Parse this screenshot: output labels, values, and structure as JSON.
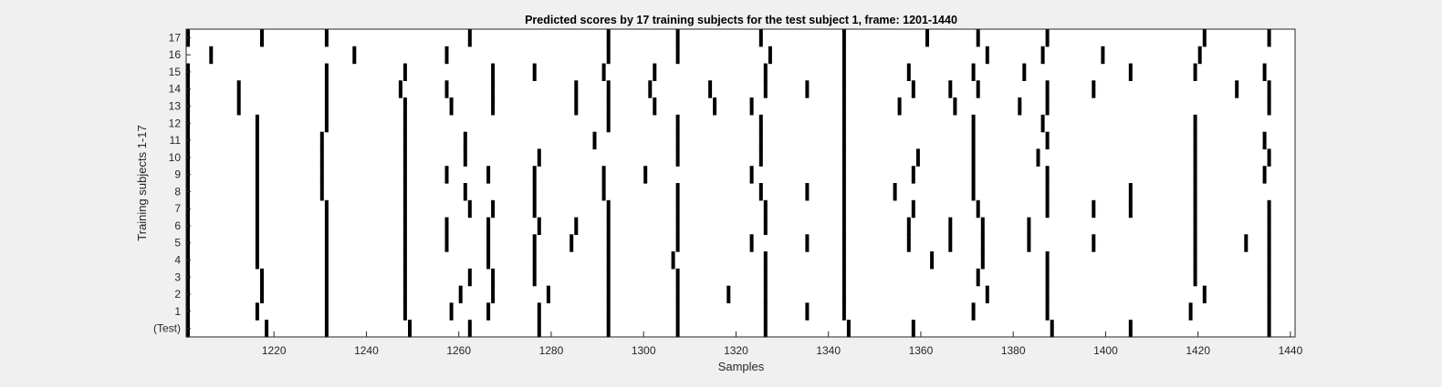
{
  "chart_data": {
    "type": "raster",
    "title": "Predicted scores by 17 training subjects for the test subject 1, frame: 1201-1440",
    "xlabel": "Samples",
    "ylabel": "Training subjects 1-17",
    "xlim": [
      1201,
      1441
    ],
    "x_ticks": [
      1220,
      1240,
      1260,
      1280,
      1300,
      1320,
      1340,
      1360,
      1380,
      1400,
      1420,
      1440
    ],
    "rows": [
      {
        "label": "17",
        "events": [
          1201,
          1217,
          1231,
          1262,
          1292,
          1307,
          1325,
          1343,
          1361,
          1372,
          1387,
          1421,
          1435
        ]
      },
      {
        "label": "16",
        "events": [
          1206,
          1237,
          1257,
          1292,
          1307,
          1327,
          1343,
          1374,
          1386,
          1399,
          1420
        ]
      },
      {
        "label": "15",
        "events": [
          1201,
          1231,
          1248,
          1267,
          1276,
          1291,
          1302,
          1326,
          1343,
          1357,
          1371,
          1382,
          1405,
          1419,
          1434
        ]
      },
      {
        "label": "14",
        "events": [
          1201,
          1212,
          1231,
          1247,
          1257,
          1267,
          1285,
          1292,
          1301,
          1314,
          1326,
          1335,
          1343,
          1358,
          1366,
          1372,
          1387,
          1397,
          1428,
          1435
        ]
      },
      {
        "label": "13",
        "events": [
          1201,
          1212,
          1231,
          1248,
          1258,
          1267,
          1285,
          1292,
          1302,
          1315,
          1323,
          1343,
          1355,
          1367,
          1381,
          1387,
          1435
        ]
      },
      {
        "label": "12",
        "events": [
          1201,
          1216,
          1231,
          1248,
          1292,
          1307,
          1325,
          1343,
          1371,
          1386,
          1419
        ]
      },
      {
        "label": "11",
        "events": [
          1200,
          1216,
          1230,
          1248,
          1261,
          1289,
          1307,
          1325,
          1343,
          1371,
          1387,
          1419,
          1434
        ]
      },
      {
        "label": "10",
        "events": [
          1200,
          1216,
          1230,
          1248,
          1261,
          1277,
          1307,
          1325,
          1343,
          1359,
          1371,
          1385,
          1419,
          1435
        ]
      },
      {
        "label": "9",
        "events": [
          1201,
          1216,
          1230,
          1248,
          1257,
          1266,
          1276,
          1291,
          1300,
          1323,
          1343,
          1358,
          1371,
          1387,
          1419,
          1434
        ]
      },
      {
        "label": "8",
        "events": [
          1200,
          1216,
          1230,
          1248,
          1261,
          1276,
          1291,
          1307,
          1325,
          1335,
          1343,
          1354,
          1371,
          1387,
          1405,
          1419
        ]
      },
      {
        "label": "7",
        "events": [
          1201,
          1216,
          1231,
          1248,
          1262,
          1267,
          1276,
          1292,
          1307,
          1326,
          1343,
          1358,
          1372,
          1387,
          1397,
          1405,
          1419,
          1435
        ]
      },
      {
        "label": "6",
        "events": [
          1201,
          1216,
          1231,
          1248,
          1257,
          1266,
          1277,
          1285,
          1292,
          1307,
          1326,
          1343,
          1357,
          1366,
          1373,
          1383,
          1419,
          1435
        ]
      },
      {
        "label": "5",
        "events": [
          1201,
          1216,
          1231,
          1248,
          1257,
          1266,
          1276,
          1284,
          1292,
          1307,
          1323,
          1335,
          1343,
          1357,
          1366,
          1373,
          1383,
          1397,
          1419,
          1430,
          1435
        ]
      },
      {
        "label": "4",
        "events": [
          1201,
          1216,
          1231,
          1248,
          1266,
          1276,
          1292,
          1306,
          1326,
          1343,
          1362,
          1373,
          1387,
          1419,
          1435
        ]
      },
      {
        "label": "3",
        "events": [
          1201,
          1217,
          1231,
          1248,
          1262,
          1267,
          1276,
          1292,
          1307,
          1326,
          1343,
          1372,
          1387,
          1419,
          1435
        ]
      },
      {
        "label": "2",
        "events": [
          1201,
          1217,
          1231,
          1248,
          1260,
          1267,
          1279,
          1292,
          1307,
          1318,
          1326,
          1343,
          1374,
          1387,
          1421,
          1435
        ]
      },
      {
        "label": "1",
        "events": [
          1201,
          1216,
          1231,
          1248,
          1258,
          1266,
          1277,
          1292,
          1307,
          1326,
          1335,
          1343,
          1371,
          1387,
          1418,
          1435
        ]
      },
      {
        "label": "(Test)",
        "events": [
          1201,
          1218,
          1231,
          1249,
          1262,
          1277,
          1292,
          1307,
          1326,
          1344,
          1358,
          1388,
          1405,
          1435
        ]
      }
    ]
  }
}
